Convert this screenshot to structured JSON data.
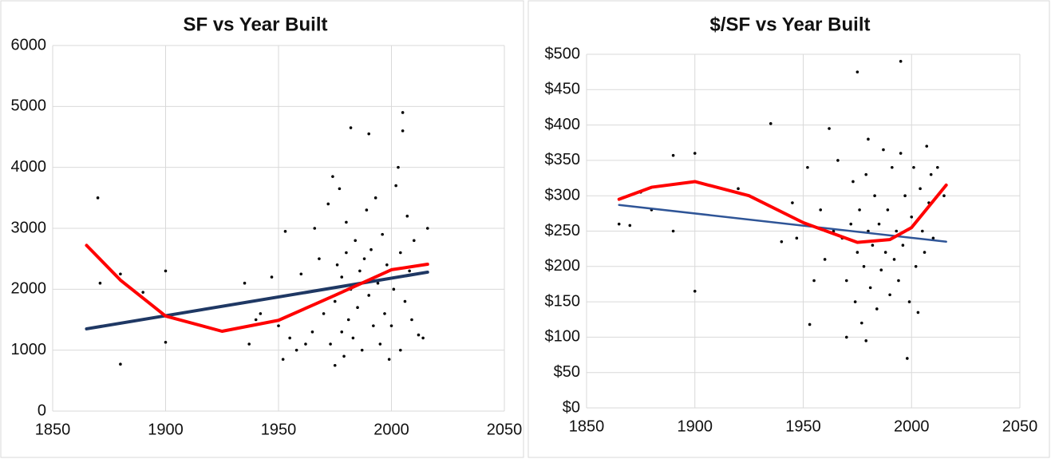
{
  "chart_data": [
    {
      "type": "scatter",
      "title": "SF vs Year Built",
      "xlim": [
        1850,
        2050
      ],
      "xticks": [
        1850,
        1900,
        1950,
        2000,
        2050
      ],
      "ylim": [
        0,
        6000
      ],
      "yticks": [
        0,
        1000,
        2000,
        3000,
        4000,
        5000,
        6000
      ],
      "grid": true,
      "series": [
        {
          "type": "scatter",
          "color": "#000000",
          "x": [
            1870,
            1871,
            1880,
            1880,
            1890,
            1900,
            1900,
            1935,
            1937,
            1940,
            1942,
            1947,
            1950,
            1952,
            1953,
            1955,
            1958,
            1960,
            1962,
            1965,
            1966,
            1968,
            1970,
            1972,
            1973,
            1974,
            1975,
            1975,
            1976,
            1977,
            1978,
            1978,
            1979,
            1980,
            1980,
            1981,
            1982,
            1982,
            1983,
            1984,
            1985,
            1986,
            1987,
            1988,
            1989,
            1990,
            1990,
            1991,
            1992,
            1993,
            1994,
            1995,
            1996,
            1997,
            1998,
            1999,
            2000,
            2001,
            2002,
            2003,
            2004,
            2004,
            2005,
            2005,
            2006,
            2007,
            2008,
            2009,
            2010,
            2012,
            2014,
            2016
          ],
          "values": [
            3500,
            2100,
            770,
            2250,
            1950,
            2300,
            1130,
            2100,
            1100,
            1500,
            1600,
            2200,
            1400,
            850,
            2950,
            1200,
            1000,
            2250,
            1100,
            1300,
            3000,
            2500,
            1600,
            3400,
            1100,
            3850,
            750,
            1800,
            2400,
            3650,
            1300,
            2200,
            900,
            2600,
            3100,
            1500,
            2000,
            4650,
            1200,
            2800,
            1700,
            2300,
            1000,
            2500,
            3300,
            4550,
            1900,
            2650,
            1400,
            3500,
            2100,
            1100,
            2900,
            1600,
            2400,
            850,
            1400,
            2000,
            3700,
            4000,
            1000,
            2600,
            4900,
            4600,
            1800,
            3200,
            2300,
            1500,
            2800,
            1250,
            1200,
            3000
          ]
        },
        {
          "type": "line",
          "color": "#1f3864",
          "width": 4,
          "x": [
            1865,
            2016
          ],
          "values": [
            1350,
            2280
          ]
        },
        {
          "type": "line",
          "color": "#ff0000",
          "width": 4,
          "x": [
            1865,
            1880,
            1900,
            1925,
            1950,
            1975,
            2000,
            2016
          ],
          "values": [
            2720,
            2150,
            1560,
            1310,
            1490,
            1900,
            2320,
            2410
          ]
        }
      ]
    },
    {
      "type": "scatter",
      "title": "$/SF vs Year Built",
      "xlim": [
        1850,
        2050
      ],
      "xticks": [
        1850,
        1900,
        1950,
        2000,
        2050
      ],
      "ylim": [
        0,
        500
      ],
      "yticks": [
        {
          "value": 0,
          "label": "$0"
        },
        {
          "value": 50,
          "label": "$50"
        },
        {
          "value": 100,
          "label": "$100"
        },
        {
          "value": 150,
          "label": "$150"
        },
        {
          "value": 200,
          "label": "$200"
        },
        {
          "value": 250,
          "label": "$250"
        },
        {
          "value": 300,
          "label": "$300"
        },
        {
          "value": 350,
          "label": "$350"
        },
        {
          "value": 400,
          "label": "$400"
        },
        {
          "value": 450,
          "label": "$450"
        },
        {
          "value": 500,
          "label": "$500"
        }
      ],
      "grid": true,
      "series": [
        {
          "type": "scatter",
          "color": "#000000",
          "x": [
            1865,
            1870,
            1875,
            1880,
            1890,
            1890,
            1900,
            1900,
            1920,
            1935,
            1940,
            1945,
            1947,
            1952,
            1953,
            1955,
            1958,
            1960,
            1962,
            1964,
            1966,
            1968,
            1970,
            1970,
            1972,
            1973,
            1974,
            1975,
            1975,
            1976,
            1977,
            1978,
            1979,
            1979,
            1980,
            1980,
            1981,
            1982,
            1983,
            1984,
            1985,
            1986,
            1987,
            1988,
            1989,
            1990,
            1991,
            1992,
            1993,
            1994,
            1995,
            1995,
            1996,
            1997,
            1998,
            1999,
            2000,
            2001,
            2002,
            2003,
            2004,
            2005,
            2006,
            2007,
            2008,
            2009,
            2010,
            2012,
            2015
          ],
          "values": [
            260,
            258,
            305,
            280,
            250,
            357,
            360,
            165,
            310,
            402,
            235,
            290,
            240,
            340,
            118,
            180,
            280,
            210,
            395,
            250,
            350,
            240,
            100,
            180,
            260,
            320,
            150,
            475,
            220,
            280,
            120,
            200,
            95,
            330,
            250,
            380,
            170,
            230,
            300,
            140,
            260,
            195,
            365,
            220,
            280,
            160,
            340,
            210,
            250,
            180,
            490,
            360,
            230,
            300,
            70,
            150,
            270,
            340,
            200,
            135,
            310,
            250,
            220,
            370,
            290,
            330,
            240,
            340,
            300
          ]
        },
        {
          "type": "line",
          "color": "#2f5597",
          "width": 2.5,
          "x": [
            1865,
            2016
          ],
          "values": [
            287,
            235
          ]
        },
        {
          "type": "line",
          "color": "#ff0000",
          "width": 4,
          "x": [
            1865,
            1880,
            1900,
            1925,
            1950,
            1975,
            1990,
            2000,
            2016
          ],
          "values": [
            295,
            312,
            320,
            300,
            262,
            234,
            238,
            255,
            315
          ]
        }
      ]
    }
  ]
}
